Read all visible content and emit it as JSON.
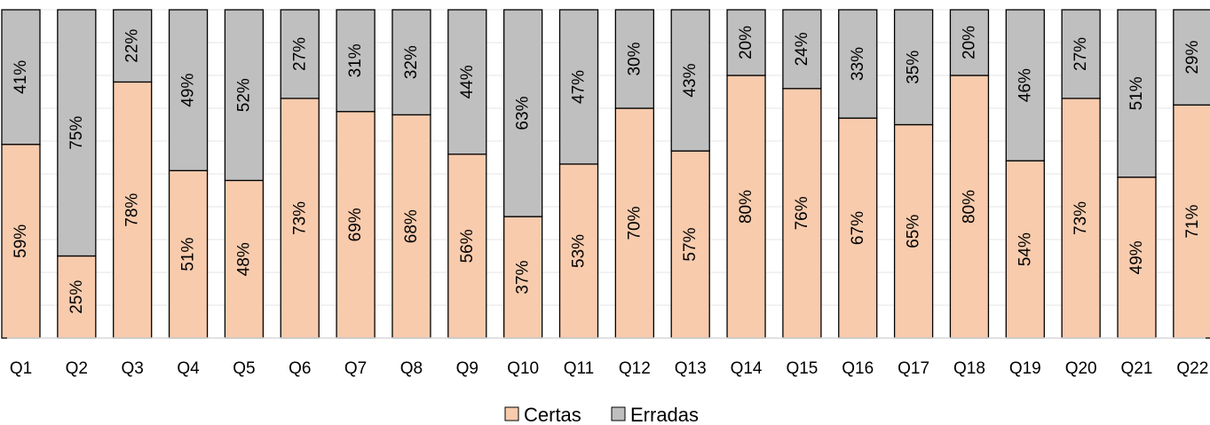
{
  "chart_data": {
    "type": "bar",
    "stacked": true,
    "normalized": true,
    "categories": [
      "Q1",
      "Q2",
      "Q3",
      "Q4",
      "Q5",
      "Q6",
      "Q7",
      "Q8",
      "Q9",
      "Q10",
      "Q11",
      "Q12",
      "Q13",
      "Q14",
      "Q15",
      "Q16",
      "Q17",
      "Q18",
      "Q19",
      "Q20",
      "Q21",
      "Q22"
    ],
    "series": [
      {
        "name": "Certas",
        "color": "#f8cbad",
        "values": [
          59,
          25,
          78,
          51,
          48,
          73,
          69,
          68,
          56,
          37,
          53,
          70,
          57,
          80,
          76,
          67,
          65,
          80,
          54,
          73,
          49,
          71
        ]
      },
      {
        "name": "Erradas",
        "color": "#bfbfbf",
        "values": [
          41,
          75,
          22,
          49,
          52,
          27,
          31,
          32,
          44,
          63,
          47,
          30,
          43,
          20,
          24,
          33,
          35,
          20,
          46,
          27,
          51,
          29
        ]
      }
    ],
    "ylim": [
      0,
      100
    ],
    "value_format": "{v}%",
    "grid": true,
    "legend_position": "bottom"
  }
}
